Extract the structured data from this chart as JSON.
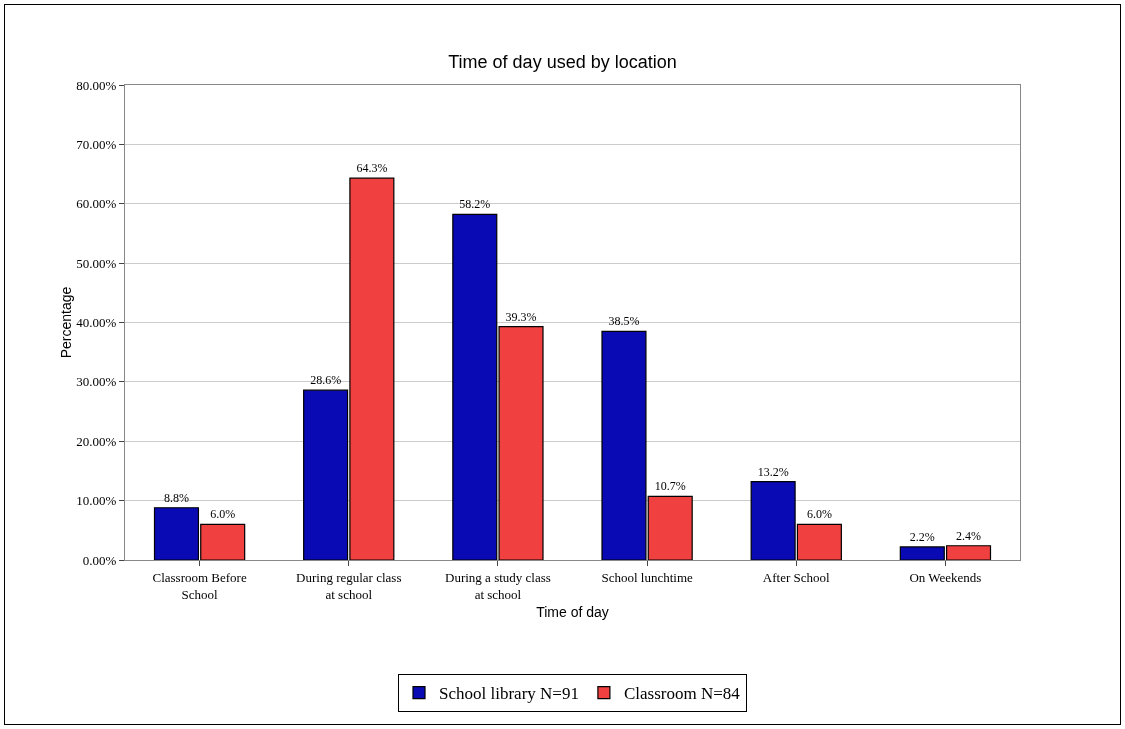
{
  "chart_data": {
    "type": "bar",
    "title": "Time of day used by location",
    "xlabel": "Time of day",
    "ylabel": "Percentage",
    "categories": [
      "Classroom Before School",
      "During regular class at school",
      "During a study class at school",
      "School lunchtime",
      "After School",
      "On Weekends"
    ],
    "series": [
      {
        "name": "School library N=91",
        "color": "#0a0ab4",
        "values": [
          8.8,
          28.6,
          58.2,
          38.5,
          13.2,
          2.2
        ],
        "value_labels": [
          "8.8%",
          "28.6%",
          "58.2%",
          "38.5%",
          "13.2%",
          "2.2%"
        ]
      },
      {
        "name": "Classroom N=84",
        "color": "#f04040",
        "values": [
          6.0,
          64.3,
          39.3,
          10.7,
          6.0,
          2.4
        ],
        "value_labels": [
          "6.0%",
          "64.3%",
          "39.3%",
          "10.7%",
          "6.0%",
          "2.4%"
        ]
      }
    ],
    "ylim": [
      0,
      80
    ],
    "yticks": [
      {
        "value": 0,
        "label": "0.00%"
      },
      {
        "value": 10,
        "label": "10.00%"
      },
      {
        "value": 20,
        "label": "20.00%"
      },
      {
        "value": 30,
        "label": "30.00%"
      },
      {
        "value": 40,
        "label": "40.00%"
      },
      {
        "value": 50,
        "label": "50.00%"
      },
      {
        "value": 60,
        "label": "60.00%"
      },
      {
        "value": 70,
        "label": "70.00%"
      },
      {
        "value": 80,
        "label": "80.00%"
      }
    ],
    "grid": "y",
    "legend": "bottom"
  }
}
